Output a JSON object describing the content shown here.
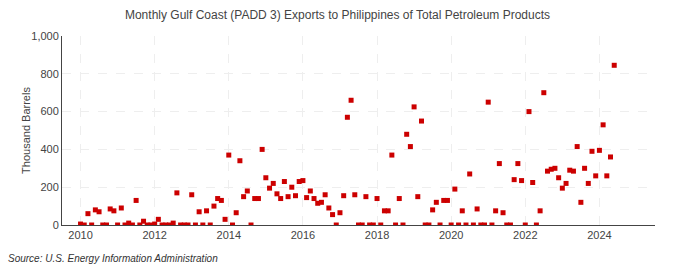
{
  "chart_data": {
    "type": "scatter",
    "title": "Monthly Gulf Coast (PADD 3) Exports to Philippines of Total Petroleum Products",
    "ylabel": "Thousand Barrels",
    "source": "Source: U.S. Energy Information Administration",
    "color": "#cc0000",
    "marker": "square",
    "grid": true,
    "xlim": [
      2009.5,
      2025.5
    ],
    "xticks": [
      2010,
      2012,
      2014,
      2016,
      2018,
      2020,
      2022,
      2024
    ],
    "ylim": [
      0,
      1000
    ],
    "yticks": [
      0,
      200,
      400,
      600,
      800,
      {
        "value": 1000,
        "label": "1,000"
      }
    ],
    "x": [
      2010.0,
      2010.1,
      2010.2,
      2010.3,
      2010.4,
      2010.5,
      2010.6,
      2010.7,
      2010.8,
      2010.9,
      2011.0,
      2011.1,
      2011.2,
      2011.3,
      2011.4,
      2011.5,
      2011.6,
      2011.7,
      2011.8,
      2011.9,
      2012.0,
      2012.1,
      2012.2,
      2012.3,
      2012.4,
      2012.5,
      2012.6,
      2012.7,
      2012.8,
      2012.9,
      2013.0,
      2013.1,
      2013.2,
      2013.3,
      2013.4,
      2013.5,
      2013.6,
      2013.7,
      2013.8,
      2013.9,
      2014.0,
      2014.1,
      2014.2,
      2014.3,
      2014.4,
      2014.5,
      2014.6,
      2014.7,
      2014.8,
      2014.9,
      2015.0,
      2015.1,
      2015.2,
      2015.3,
      2015.4,
      2015.5,
      2015.6,
      2015.7,
      2015.8,
      2015.9,
      2016.0,
      2016.1,
      2016.2,
      2016.3,
      2016.4,
      2016.5,
      2016.6,
      2016.7,
      2016.8,
      2016.9,
      2017.0,
      2017.1,
      2017.2,
      2017.3,
      2017.4,
      2017.5,
      2017.6,
      2017.7,
      2017.8,
      2017.9,
      2018.0,
      2018.1,
      2018.2,
      2018.3,
      2018.4,
      2018.5,
      2018.6,
      2018.7,
      2018.8,
      2018.9,
      2019.0,
      2019.1,
      2019.2,
      2019.3,
      2019.4,
      2019.5,
      2019.6,
      2019.7,
      2019.8,
      2019.9,
      2020.0,
      2020.1,
      2020.2,
      2020.3,
      2020.4,
      2020.5,
      2020.6,
      2020.7,
      2020.8,
      2020.9,
      2021.0,
      2021.1,
      2021.2,
      2021.3,
      2021.4,
      2021.5,
      2021.6,
      2021.7,
      2021.8,
      2021.9,
      2022.0,
      2022.1,
      2022.2,
      2022.3,
      2022.4,
      2022.5,
      2022.6,
      2022.7,
      2022.8,
      2022.9,
      2023.0,
      2023.1,
      2023.2,
      2023.3,
      2023.4,
      2023.5,
      2023.6,
      2023.7,
      2023.8,
      2023.9,
      2024.0,
      2024.1,
      2024.2,
      2024.3,
      2024.4
    ],
    "values": [
      5,
      0,
      60,
      0,
      80,
      70,
      0,
      0,
      85,
      75,
      0,
      90,
      0,
      10,
      0,
      130,
      0,
      20,
      0,
      0,
      5,
      30,
      0,
      0,
      0,
      10,
      170,
      0,
      0,
      0,
      160,
      0,
      70,
      0,
      75,
      0,
      100,
      140,
      130,
      30,
      370,
      0,
      65,
      340,
      150,
      180,
      0,
      140,
      140,
      400,
      250,
      195,
      220,
      165,
      140,
      230,
      150,
      200,
      155,
      230,
      235,
      145,
      180,
      140,
      115,
      120,
      160,
      90,
      55,
      0,
      65,
      155,
      570,
      660,
      160,
      0,
      0,
      150,
      0,
      0,
      140,
      0,
      75,
      75,
      370,
      0,
      140,
      0,
      480,
      415,
      625,
      150,
      550,
      0,
      0,
      80,
      120,
      0,
      130,
      130,
      0,
      190,
      0,
      75,
      0,
      270,
      0,
      85,
      0,
      0,
      650,
      0,
      75,
      325,
      65,
      0,
      0,
      240,
      325,
      235,
      0,
      600,
      225,
      0,
      75,
      700,
      285,
      295,
      300,
      250,
      195,
      220,
      290,
      285,
      415,
      120,
      300,
      220,
      390,
      260,
      395,
      530,
      260,
      360,
      845
    ]
  }
}
